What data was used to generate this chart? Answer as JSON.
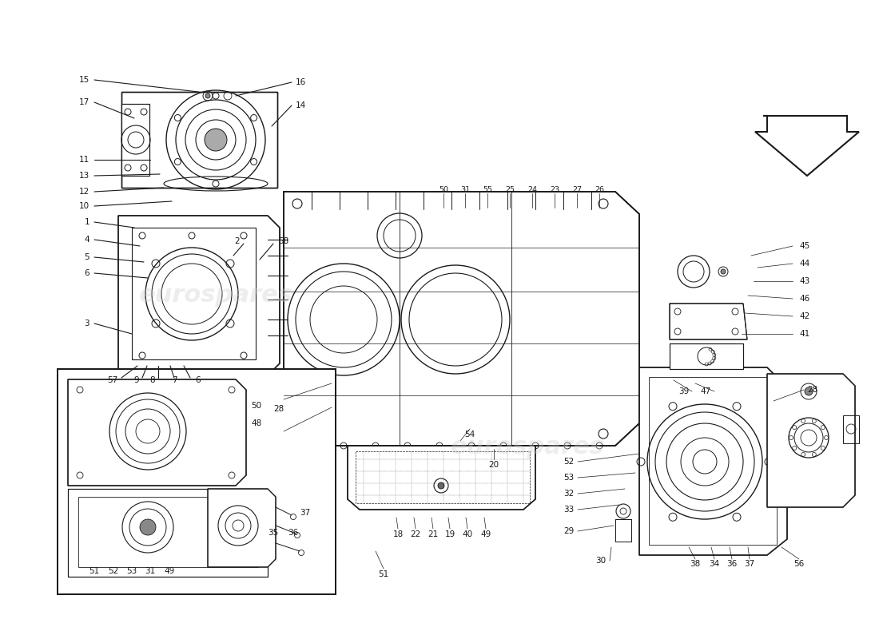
{
  "bg_color": "#ffffff",
  "line_color": "#1a1a1a",
  "watermark_color": "#cccccc",
  "watermark_text": "eurospares"
}
